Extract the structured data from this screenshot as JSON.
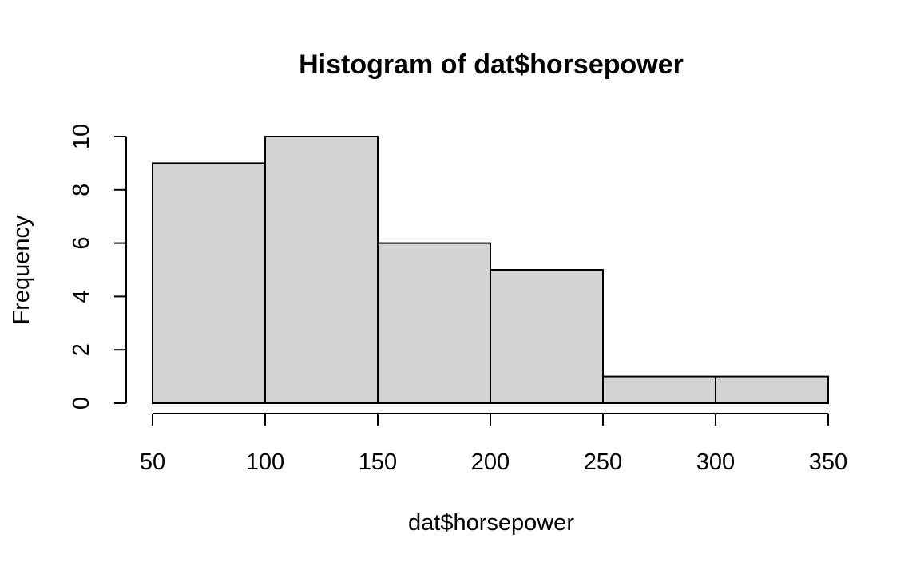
{
  "chart_data": {
    "type": "bar",
    "title": "Histogram of dat$horsepower",
    "xlabel": "dat$horsepower",
    "ylabel": "Frequency",
    "bins": [
      {
        "from": 50,
        "to": 100,
        "count": 9
      },
      {
        "from": 100,
        "to": 150,
        "count": 10
      },
      {
        "from": 150,
        "to": 200,
        "count": 6
      },
      {
        "from": 200,
        "to": 250,
        "count": 5
      },
      {
        "from": 250,
        "to": 300,
        "count": 1
      },
      {
        "from": 300,
        "to": 350,
        "count": 1
      }
    ],
    "xlim": [
      50,
      350
    ],
    "ylim": [
      0,
      10
    ],
    "x_ticks": [
      50,
      100,
      150,
      200,
      250,
      300,
      350
    ],
    "y_ticks": [
      0,
      2,
      4,
      6,
      8,
      10
    ],
    "bar_color": "#d3d3d3",
    "grid": false
  }
}
